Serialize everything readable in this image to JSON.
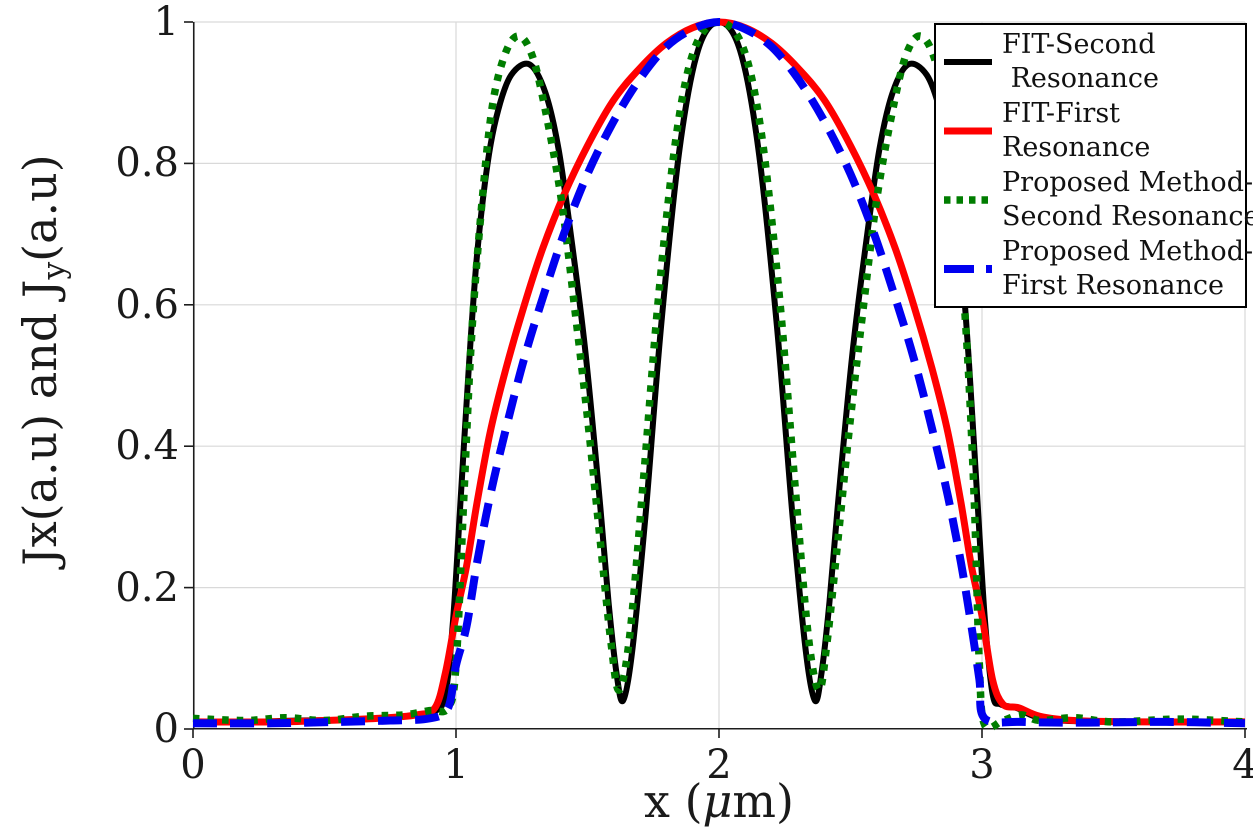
{
  "chart_data": {
    "type": "line",
    "title": "",
    "xlabel": "x (μm)",
    "ylabel": "Jx(a.u) and Jy(a.u)",
    "xlabel_parts": {
      "pre": "x (",
      "mu": "μ",
      "post": "m)"
    },
    "ylabel_parts": {
      "pre": "Jx(a.u) and J",
      "sub": "y",
      "post": "(a.u)"
    },
    "xlim": [
      0,
      4
    ],
    "ylim": [
      0,
      1
    ],
    "xticks": [
      0,
      1,
      2,
      3,
      4
    ],
    "xtick_labels": [
      "0",
      "1",
      "2",
      "3",
      "4"
    ],
    "yticks": [
      0,
      0.2,
      0.4,
      0.6,
      0.8,
      1
    ],
    "ytick_labels": [
      "0",
      "0.2",
      "0.4",
      "0.6",
      "0.8",
      "1"
    ],
    "grid": true,
    "grid_color": "#d9d9d9",
    "axis_color": "#1c1c1c",
    "background_color": "#ffffff",
    "series": [
      {
        "id": "fit-second-resonance",
        "name": "FIT-Second Resonance",
        "color": "#000000",
        "style": "solid",
        "width": 6,
        "points": [
          [
            0,
            0.01
          ],
          [
            0.2,
            0.01
          ],
          [
            0.4,
            0.012
          ],
          [
            0.6,
            0.013
          ],
          [
            0.75,
            0.016
          ],
          [
            0.85,
            0.02
          ],
          [
            0.92,
            0.025
          ],
          [
            0.96,
            0.05
          ],
          [
            0.99,
            0.16
          ],
          [
            1.02,
            0.34
          ],
          [
            1.05,
            0.52
          ],
          [
            1.08,
            0.67
          ],
          [
            1.12,
            0.8
          ],
          [
            1.16,
            0.875
          ],
          [
            1.21,
            0.925
          ],
          [
            1.28,
            0.94
          ],
          [
            1.34,
            0.9
          ],
          [
            1.39,
            0.82
          ],
          [
            1.44,
            0.69
          ],
          [
            1.49,
            0.54
          ],
          [
            1.54,
            0.35
          ],
          [
            1.58,
            0.18
          ],
          [
            1.61,
            0.08
          ],
          [
            1.635,
            0.04
          ],
          [
            1.67,
            0.11
          ],
          [
            1.72,
            0.3
          ],
          [
            1.78,
            0.57
          ],
          [
            1.85,
            0.82
          ],
          [
            1.92,
            0.96
          ],
          [
            2.0,
            1.0
          ],
          [
            2.08,
            0.96
          ],
          [
            2.15,
            0.82
          ],
          [
            2.22,
            0.57
          ],
          [
            2.28,
            0.3
          ],
          [
            2.33,
            0.11
          ],
          [
            2.365,
            0.04
          ],
          [
            2.39,
            0.08
          ],
          [
            2.42,
            0.18
          ],
          [
            2.46,
            0.35
          ],
          [
            2.51,
            0.54
          ],
          [
            2.56,
            0.69
          ],
          [
            2.61,
            0.82
          ],
          [
            2.66,
            0.9
          ],
          [
            2.72,
            0.94
          ],
          [
            2.79,
            0.925
          ],
          [
            2.84,
            0.875
          ],
          [
            2.88,
            0.8
          ],
          [
            2.92,
            0.67
          ],
          [
            2.95,
            0.52
          ],
          [
            2.98,
            0.34
          ],
          [
            3.01,
            0.16
          ],
          [
            3.04,
            0.05
          ],
          [
            3.07,
            0.035
          ],
          [
            3.13,
            0.03
          ],
          [
            3.2,
            0.018
          ],
          [
            3.3,
            0.012
          ],
          [
            3.5,
            0.01
          ],
          [
            3.75,
            0.01
          ],
          [
            4,
            0.01
          ]
        ]
      },
      {
        "id": "fit-first-resonance",
        "name": "FIT-First Resonance",
        "color": "#ff0000",
        "style": "solid",
        "width": 7,
        "points": [
          [
            0,
            0.01
          ],
          [
            0.3,
            0.01
          ],
          [
            0.5,
            0.012
          ],
          [
            0.7,
            0.015
          ],
          [
            0.85,
            0.02
          ],
          [
            0.92,
            0.03
          ],
          [
            0.96,
            0.08
          ],
          [
            1.0,
            0.16
          ],
          [
            1.04,
            0.23
          ],
          [
            1.08,
            0.32
          ],
          [
            1.13,
            0.42
          ],
          [
            1.19,
            0.51
          ],
          [
            1.26,
            0.6
          ],
          [
            1.33,
            0.68
          ],
          [
            1.41,
            0.755
          ],
          [
            1.5,
            0.825
          ],
          [
            1.6,
            0.89
          ],
          [
            1.7,
            0.935
          ],
          [
            1.8,
            0.97
          ],
          [
            1.9,
            0.992
          ],
          [
            2.0,
            1.0
          ],
          [
            2.1,
            0.992
          ],
          [
            2.2,
            0.97
          ],
          [
            2.3,
            0.935
          ],
          [
            2.4,
            0.89
          ],
          [
            2.5,
            0.825
          ],
          [
            2.59,
            0.755
          ],
          [
            2.67,
            0.68
          ],
          [
            2.74,
            0.6
          ],
          [
            2.81,
            0.51
          ],
          [
            2.87,
            0.42
          ],
          [
            2.92,
            0.32
          ],
          [
            2.96,
            0.23
          ],
          [
            3.0,
            0.16
          ],
          [
            3.04,
            0.07
          ],
          [
            3.08,
            0.035
          ],
          [
            3.14,
            0.03
          ],
          [
            3.22,
            0.018
          ],
          [
            3.35,
            0.012
          ],
          [
            3.6,
            0.01
          ],
          [
            4,
            0.01
          ]
        ]
      },
      {
        "id": "proposed-second-resonance",
        "name": "Proposed Method-Second Resonance",
        "color": "#007d00",
        "style": "dotted",
        "width": 7.5,
        "points": [
          [
            0,
            0.015
          ],
          [
            0.2,
            0.012
          ],
          [
            0.35,
            0.016
          ],
          [
            0.5,
            0.012
          ],
          [
            0.65,
            0.018
          ],
          [
            0.8,
            0.02
          ],
          [
            0.9,
            0.026
          ],
          [
            0.97,
            0.03
          ],
          [
            1.0,
            0.09
          ],
          [
            1.03,
            0.33
          ],
          [
            1.06,
            0.56
          ],
          [
            1.1,
            0.75
          ],
          [
            1.14,
            0.885
          ],
          [
            1.19,
            0.958
          ],
          [
            1.24,
            0.98
          ],
          [
            1.29,
            0.952
          ],
          [
            1.34,
            0.875
          ],
          [
            1.4,
            0.75
          ],
          [
            1.45,
            0.6
          ],
          [
            1.5,
            0.44
          ],
          [
            1.55,
            0.26
          ],
          [
            1.59,
            0.12
          ],
          [
            1.62,
            0.055
          ],
          [
            1.66,
            0.13
          ],
          [
            1.71,
            0.34
          ],
          [
            1.77,
            0.61
          ],
          [
            1.84,
            0.845
          ],
          [
            1.91,
            0.965
          ],
          [
            2.0,
            1.0
          ],
          [
            2.09,
            0.965
          ],
          [
            2.16,
            0.845
          ],
          [
            2.23,
            0.61
          ],
          [
            2.29,
            0.34
          ],
          [
            2.34,
            0.13
          ],
          [
            2.38,
            0.055
          ],
          [
            2.41,
            0.12
          ],
          [
            2.45,
            0.26
          ],
          [
            2.5,
            0.44
          ],
          [
            2.55,
            0.6
          ],
          [
            2.6,
            0.75
          ],
          [
            2.66,
            0.875
          ],
          [
            2.71,
            0.952
          ],
          [
            2.76,
            0.98
          ],
          [
            2.81,
            0.958
          ],
          [
            2.86,
            0.885
          ],
          [
            2.9,
            0.75
          ],
          [
            2.94,
            0.56
          ],
          [
            2.97,
            0.33
          ],
          [
            2.99,
            0.09
          ],
          [
            3.01,
            0.006
          ],
          [
            3.08,
            0.012
          ],
          [
            3.15,
            0.02
          ],
          [
            3.22,
            0.012
          ],
          [
            3.35,
            0.016
          ],
          [
            3.5,
            0.01
          ],
          [
            3.75,
            0.014
          ],
          [
            4,
            0.01
          ]
        ]
      },
      {
        "id": "proposed-first-resonance",
        "name": "Proposed Method-First Resonance",
        "color": "#0000f0",
        "style": "dashed",
        "width": 8,
        "points": [
          [
            0,
            0.008
          ],
          [
            0.3,
            0.008
          ],
          [
            0.55,
            0.01
          ],
          [
            0.75,
            0.012
          ],
          [
            0.9,
            0.015
          ],
          [
            0.97,
            0.03
          ],
          [
            1.0,
            0.09
          ],
          [
            1.04,
            0.145
          ],
          [
            1.08,
            0.235
          ],
          [
            1.13,
            0.33
          ],
          [
            1.19,
            0.425
          ],
          [
            1.26,
            0.525
          ],
          [
            1.33,
            0.61
          ],
          [
            1.41,
            0.7
          ],
          [
            1.5,
            0.785
          ],
          [
            1.6,
            0.86
          ],
          [
            1.7,
            0.92
          ],
          [
            1.8,
            0.965
          ],
          [
            1.9,
            0.99
          ],
          [
            2.0,
            1.0
          ],
          [
            2.1,
            0.99
          ],
          [
            2.2,
            0.965
          ],
          [
            2.3,
            0.92
          ],
          [
            2.4,
            0.86
          ],
          [
            2.5,
            0.785
          ],
          [
            2.59,
            0.7
          ],
          [
            2.67,
            0.61
          ],
          [
            2.74,
            0.525
          ],
          [
            2.81,
            0.425
          ],
          [
            2.87,
            0.33
          ],
          [
            2.92,
            0.235
          ],
          [
            2.96,
            0.145
          ],
          [
            2.99,
            0.07
          ],
          [
            3.01,
            0.015
          ],
          [
            3.15,
            0.01
          ],
          [
            3.4,
            0.009
          ],
          [
            3.7,
            0.01
          ],
          [
            4,
            0.008
          ]
        ]
      }
    ],
    "legend": {
      "position": "top-right",
      "border_color": "#000000",
      "entries": [
        {
          "series": "fit-second-resonance",
          "lines": [
            "FIT-Second",
            " Resonance"
          ]
        },
        {
          "series": "fit-first-resonance",
          "lines": [
            "FIT-First",
            "Resonance"
          ]
        },
        {
          "series": "proposed-second-resonance",
          "lines": [
            "Proposed Method-",
            "Second Resonance"
          ]
        },
        {
          "series": "proposed-first-resonance",
          "lines": [
            "Proposed Method-",
            "First Resonance"
          ]
        }
      ]
    }
  }
}
